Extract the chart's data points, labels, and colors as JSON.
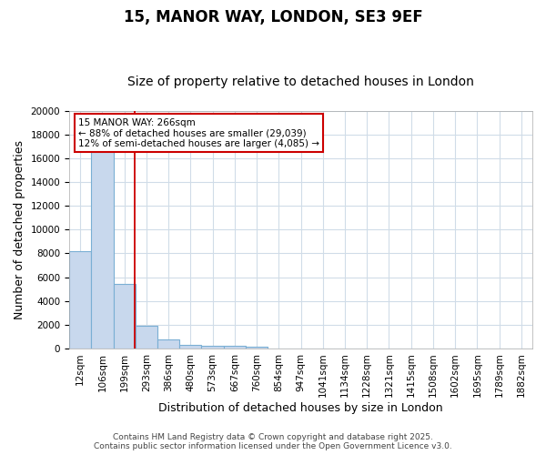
{
  "title": "15, MANOR WAY, LONDON, SE3 9EF",
  "subtitle": "Size of property relative to detached houses in London",
  "xlabel": "Distribution of detached houses by size in London",
  "ylabel": "Number of detached properties",
  "bar_color": "#c8d8ed",
  "bar_edge_color": "#7aafd4",
  "plot_bg_color": "#ffffff",
  "fig_bg_color": "#ffffff",
  "grid_color": "#d0dce8",
  "categories": [
    "12sqm",
    "106sqm",
    "199sqm",
    "293sqm",
    "386sqm",
    "480sqm",
    "573sqm",
    "667sqm",
    "760sqm",
    "854sqm",
    "947sqm",
    "1041sqm",
    "1134sqm",
    "1228sqm",
    "1321sqm",
    "1415sqm",
    "1508sqm",
    "1602sqm",
    "1695sqm",
    "1789sqm",
    "1882sqm"
  ],
  "values": [
    8200,
    16700,
    5400,
    1900,
    750,
    310,
    230,
    180,
    130,
    0,
    0,
    0,
    0,
    0,
    0,
    0,
    0,
    0,
    0,
    0,
    0
  ],
  "ylim": [
    0,
    20000
  ],
  "yticks": [
    0,
    2000,
    4000,
    6000,
    8000,
    10000,
    12000,
    14000,
    16000,
    18000,
    20000
  ],
  "vline_x_index": 2.47,
  "vline_color": "#cc0000",
  "annotation_text": "15 MANOR WAY: 266sqm\n← 88% of detached houses are smaller (29,039)\n12% of semi-detached houses are larger (4,085) →",
  "annotation_box_color": "#cc0000",
  "footnote": "Contains HM Land Registry data © Crown copyright and database right 2025.\nContains public sector information licensed under the Open Government Licence v3.0.",
  "title_fontsize": 12,
  "subtitle_fontsize": 10,
  "axis_label_fontsize": 9,
  "tick_fontsize": 7.5,
  "annotation_fontsize": 7.5,
  "footnote_fontsize": 6.5
}
